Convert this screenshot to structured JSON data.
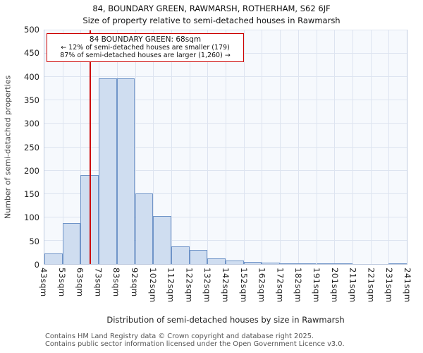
{
  "title": "84, BOUNDARY GREEN, RAWMARSH, ROTHERHAM, S62 6JF",
  "subtitle": "Size of property relative to semi-detached houses in Rawmarsh",
  "annotation": {
    "line1": "84 BOUNDARY GREEN: 68sqm",
    "line2": "← 12% of semi-detached houses are smaller (179)",
    "line3": "87% of semi-detached houses are larger (1,260) →"
  },
  "footer": {
    "line1": "Contains HM Land Registry data © Crown copyright and database right 2025.",
    "line2": "Contains public sector information licensed under the Open Government Licence v3.0."
  },
  "chart_data": {
    "type": "bar",
    "title": "84, BOUNDARY GREEN, RAWMARSH, ROTHERHAM, S62 6JF",
    "subtitle": "Size of property relative to semi-detached houses in Rawmarsh",
    "xlabel": "Distribution of semi-detached houses by size in Rawmarsh",
    "ylabel": "Number of semi-detached properties",
    "bin_edges_labels": [
      "43sqm",
      "53sqm",
      "63sqm",
      "73sqm",
      "83sqm",
      "92sqm",
      "102sqm",
      "112sqm",
      "122sqm",
      "132sqm",
      "142sqm",
      "152sqm",
      "162sqm",
      "172sqm",
      "182sqm",
      "191sqm",
      "201sqm",
      "211sqm",
      "221sqm",
      "231sqm",
      "241sqm"
    ],
    "bin_edges_sqm": [
      43,
      53,
      63,
      73,
      83,
      92,
      102,
      112,
      122,
      132,
      142,
      152,
      162,
      172,
      182,
      191,
      201,
      211,
      221,
      231,
      241
    ],
    "values": [
      22,
      88,
      190,
      398,
      398,
      151,
      103,
      38,
      30,
      12,
      8,
      5,
      3,
      1,
      1,
      1,
      1,
      0,
      0,
      2
    ],
    "ylim": [
      0,
      500
    ],
    "ytick_step": 50,
    "grid": true,
    "legend": false,
    "marker": {
      "sqm": 68,
      "label": "68sqm"
    },
    "colors": {
      "bar_fill": "#cfddf0",
      "bar_border": "#6f94c8",
      "marker_line": "#cc0000",
      "annotation_border": "#cc0000",
      "grid": "#dde4f0",
      "plot_bg": "#f6f9fd"
    }
  }
}
